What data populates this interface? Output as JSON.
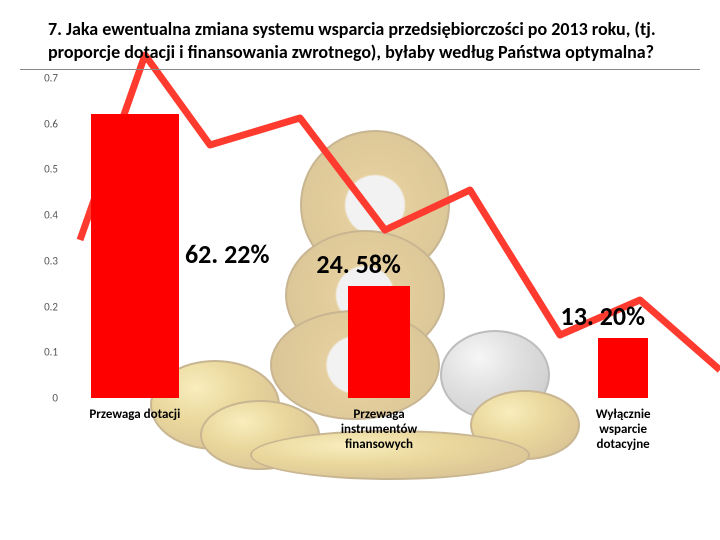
{
  "title": "7. Jaka ewentualna zmiana systemu wsparcia przedsiębiorczości po 2013 roku, (tj. proporcje dotacji i finansowania zwrotnego), byłaby według Państwa optymalna?",
  "chart": {
    "type": "bar",
    "background_color": "#ffffff",
    "bar_color": "#ff0000",
    "trend_line_color": "#ff3b2f",
    "y_axis": {
      "ticks": [
        "0",
        "0.1",
        "0.2",
        "0.3",
        "0.4",
        "0.5",
        "0.6",
        "0.7"
      ],
      "min": 0,
      "max": 0.7,
      "fontsize": 11,
      "color": "#555555"
    },
    "x_label_fontsize": 13,
    "value_label_fontsize": 26,
    "series": [
      {
        "category": "Przewaga dotacji",
        "value": 0.6222,
        "display": "62. 22%",
        "bar_center_pct": 11,
        "bar_width_pct": 14
      },
      {
        "category": "Przewaga instrumentów finansowych",
        "value": 0.2458,
        "display": "24. 58%",
        "bar_center_pct": 50,
        "bar_width_pct": 10
      },
      {
        "category": "Wyłącznie wsparcie dotacyjne",
        "value": 0.132,
        "display": "13. 20%",
        "bar_center_pct": 89,
        "bar_width_pct": 8
      }
    ]
  }
}
